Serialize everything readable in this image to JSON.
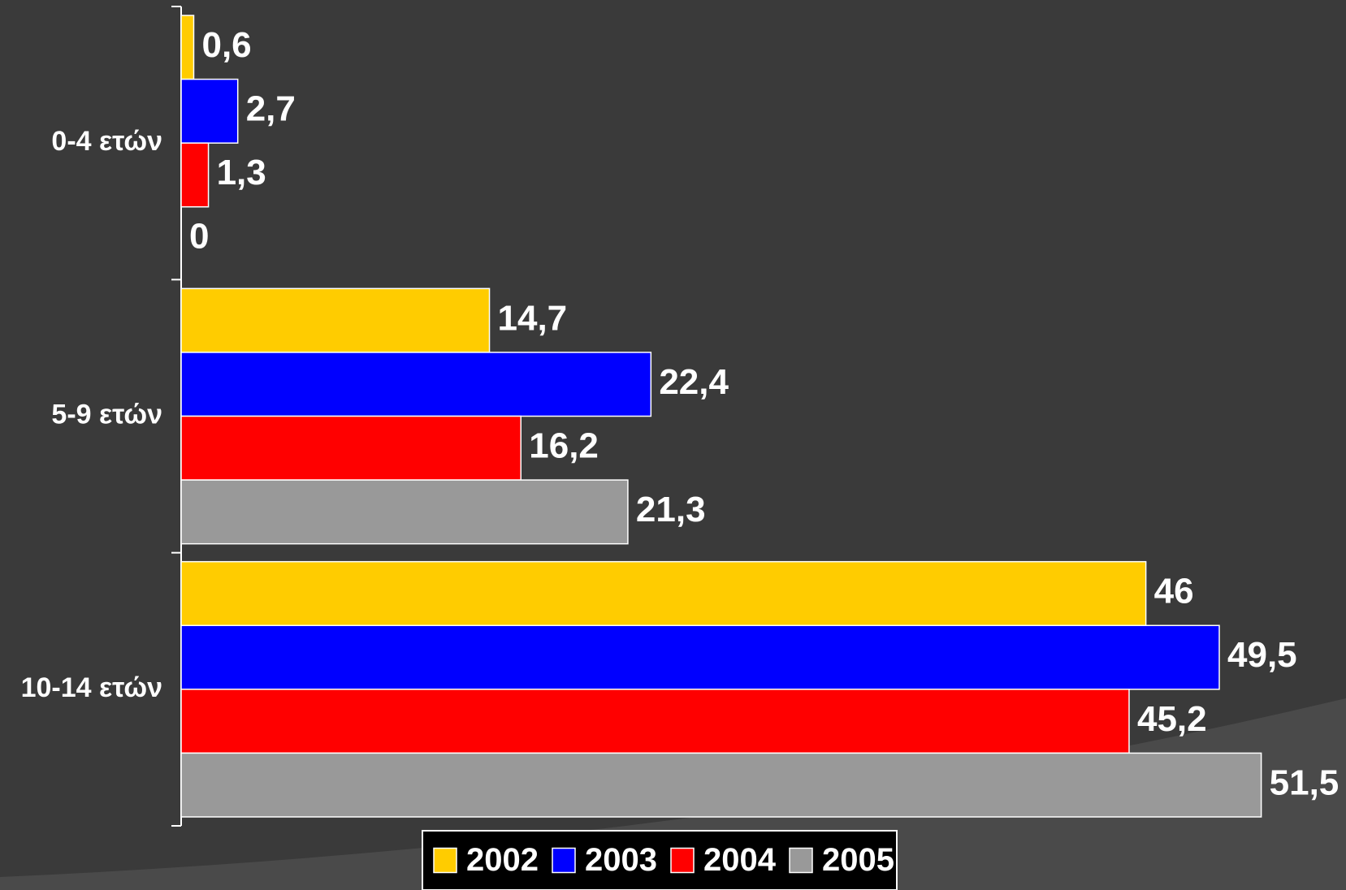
{
  "chart_data": {
    "type": "barh",
    "categories": [
      "0-4 ετών",
      "5-9 ετών",
      "10-14 ετών"
    ],
    "series": [
      {
        "name": "2002",
        "color": "#ffcc00",
        "values": [
          0.6,
          14.7,
          46
        ],
        "value_labels": [
          "0,6",
          "14,7",
          "46"
        ]
      },
      {
        "name": "2003",
        "color": "#0000ff",
        "values": [
          2.7,
          22.4,
          49.5
        ],
        "value_labels": [
          "2,7",
          "22,4",
          "49,5"
        ]
      },
      {
        "name": "2004",
        "color": "#ff0000",
        "values": [
          1.3,
          16.2,
          45.2
        ],
        "value_labels": [
          "1,3",
          "16,2",
          "45,2"
        ]
      },
      {
        "name": "2005",
        "color": "#999999",
        "values": [
          0,
          21.3,
          51.5
        ],
        "value_labels": [
          "0",
          "21,3",
          "51,5"
        ]
      }
    ],
    "xlim": [
      0,
      55
    ]
  }
}
